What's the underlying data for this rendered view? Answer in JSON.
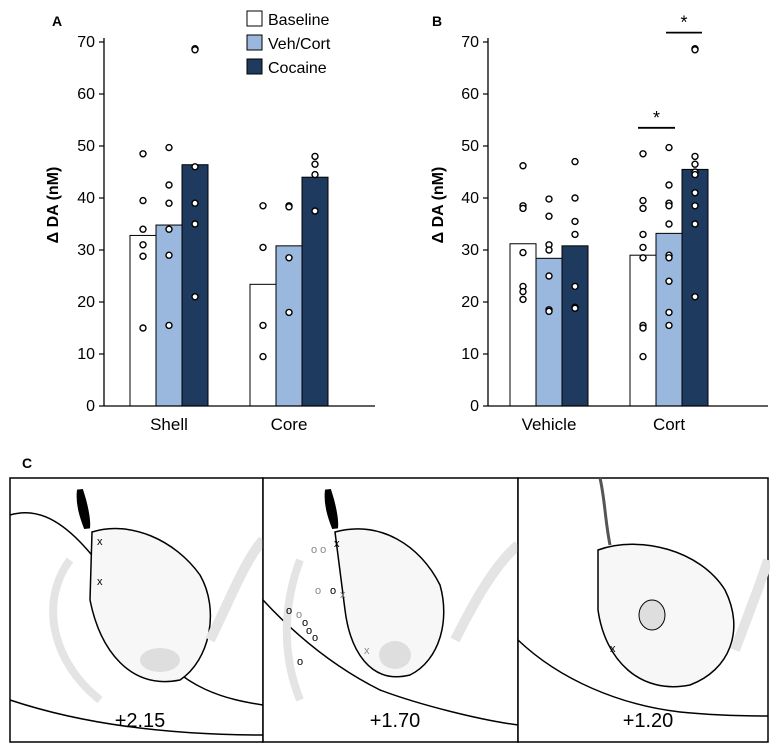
{
  "figure": {
    "panel_labels": [
      "A",
      "B",
      "C"
    ],
    "legend": [
      "Baseline",
      "Veh/Cort",
      "Cocaine"
    ],
    "colors": {
      "Baseline": "#ffffff",
      "Veh/Cort": "#9ab7de",
      "Cocaine": "#1f3a5f"
    }
  },
  "chart_data": [
    {
      "type": "bar",
      "panel": "A",
      "ylabel": "Δ DA (nM)",
      "ylim": [
        0,
        70
      ],
      "yticks": [
        0,
        10,
        20,
        30,
        40,
        50,
        60,
        70
      ],
      "categories": [
        "Shell",
        "Core"
      ],
      "series": [
        {
          "name": "Baseline",
          "values": [
            32.8,
            23.4
          ],
          "points": [
            [
              48.5,
              39.5,
              34.0,
              31.0,
              28.8,
              15.0
            ],
            [
              38.5,
              30.5,
              15.5,
              9.5
            ]
          ]
        },
        {
          "name": "Veh/Cort",
          "values": [
            34.8,
            30.8
          ],
          "points": [
            [
              49.7,
              42.5,
              39.0,
              34.0,
              29.0,
              15.5
            ],
            [
              38.5,
              38.3,
              28.5,
              18.0
            ]
          ]
        },
        {
          "name": "Cocaine",
          "values": [
            46.4,
            44.0
          ],
          "points": [
            [
              68.7,
              68.5,
              46.0,
              39.0,
              35.0,
              21.0
            ],
            [
              48.0,
              46.5,
              44.5,
              37.5
            ]
          ]
        }
      ],
      "annotations": []
    },
    {
      "type": "bar",
      "panel": "B",
      "ylabel": "Δ DA (nM)",
      "ylim": [
        0,
        70
      ],
      "yticks": [
        0,
        10,
        20,
        30,
        40,
        50,
        60,
        70
      ],
      "categories": [
        "Vehicle",
        "Cort"
      ],
      "series": [
        {
          "name": "Baseline",
          "values": [
            31.2,
            29.0
          ],
          "points": [
            [
              46.2,
              38.5,
              38.0,
              29.5,
              23.0,
              22.0,
              20.5
            ],
            [
              48.5,
              39.5,
              38.0,
              33.0,
              30.5,
              28.5,
              15.5,
              15.0,
              9.5
            ]
          ]
        },
        {
          "name": "Veh/Cort",
          "values": [
            28.4,
            33.2
          ],
          "points": [
            [
              39.8,
              36.5,
              31.0,
              30.0,
              25.0,
              18.5,
              18.2
            ],
            [
              49.7,
              42.5,
              39.0,
              38.5,
              35.0,
              29.0,
              28.5,
              24.0,
              18.0,
              15.5
            ]
          ]
        },
        {
          "name": "Cocaine",
          "values": [
            30.8,
            45.5
          ],
          "points": [
            [
              47.0,
              40.0,
              35.5,
              33.0,
              23.0,
              19.0,
              18.8
            ],
            [
              68.7,
              68.5,
              48.0,
              46.5,
              45.0,
              44.5,
              41.0,
              38.5,
              35.0,
              21.0
            ]
          ]
        }
      ],
      "annotations": [
        "*",
        "*"
      ]
    }
  ],
  "section_labels": [
    "+2.15",
    "+1.70",
    "+1.20"
  ]
}
